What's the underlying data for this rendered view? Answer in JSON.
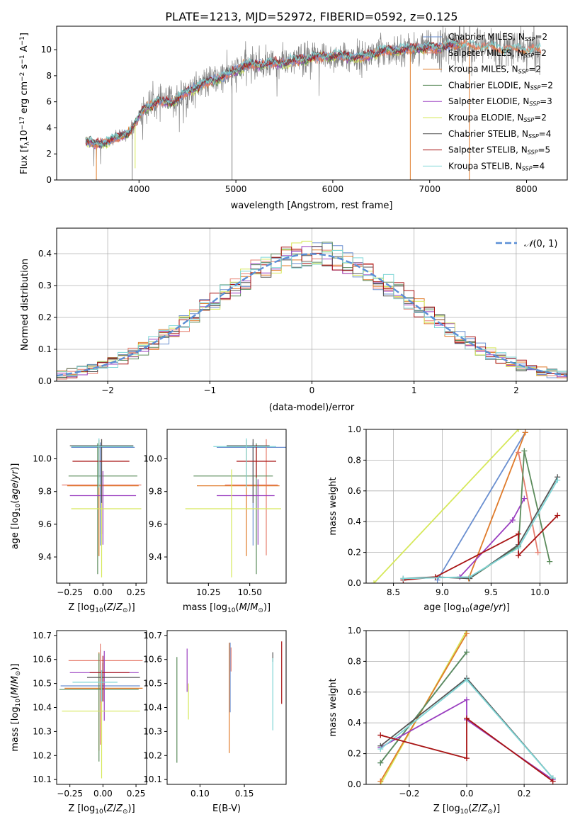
{
  "title": "PLATE=1213, MJD=52972, FIBERID=0592, z=0.125",
  "colors": {
    "Chabrier MILES": "#6a8fd0",
    "Salpeter MILES": "#e67e6f",
    "Kroupa MILES": "#e07b2a",
    "Chabrier ELODIE": "#5c8c5c",
    "Salpeter ELODIE": "#9a3fc0",
    "Kroupa ELODIE": "#d6e85a",
    "Chabrier STELIB": "#555555",
    "Salpeter STELIB": "#a81414",
    "Kroupa STELIB": "#7fd6d6"
  },
  "chart_data": [
    {
      "type": "line",
      "title": "PLATE=1213, MJD=52972, FIBERID=0592, z=0.125",
      "xlabel": "wavelength [Angstrom, rest frame]",
      "ylabel": "Flux [fλ10⁻¹⁷ erg cm⁻² s⁻¹ A⁻¹]",
      "xlim": [
        3150,
        8420
      ],
      "ylim": [
        0,
        11.8
      ],
      "xticks": [
        4000,
        5000,
        6000,
        7000,
        8000
      ],
      "yticks": [
        0,
        2,
        4,
        6,
        8,
        10
      ],
      "legend_placement": "upper-right",
      "legend": [
        {
          "label": "Chabrier MILES, N",
          "sub": "SSP",
          "suffix": "=2",
          "color": "#6a8fd0"
        },
        {
          "label": "Salpeter MILES, N",
          "sub": "SSP",
          "suffix": "=2",
          "color": "#e67e6f"
        },
        {
          "label": "Kroupa MILES, N",
          "sub": "SSP",
          "suffix": "=2",
          "color": "#e07b2a"
        },
        {
          "label": "Chabrier ELODIE, N",
          "sub": "SSP",
          "suffix": "=2",
          "color": "#5c8c5c"
        },
        {
          "label": "Salpeter ELODIE, N",
          "sub": "SSP",
          "suffix": "=3",
          "color": "#9a3fc0"
        },
        {
          "label": "Kroupa ELODIE, N",
          "sub": "SSP",
          "suffix": "=2",
          "color": "#d6e85a"
        },
        {
          "label": "Chabrier STELIB, N",
          "sub": "SSP",
          "suffix": "=4",
          "color": "#555555"
        },
        {
          "label": "Salpeter STELIB, N",
          "sub": "SSP",
          "suffix": "=5",
          "color": "#a81414"
        },
        {
          "label": "Kroupa STELIB, N",
          "sub": "SSP",
          "suffix": "=4",
          "color": "#7fd6d6"
        }
      ],
      "data_color": "#808080",
      "continuum": {
        "x": [
          3450,
          3550,
          3700,
          3800,
          3900,
          3960,
          4050,
          4200,
          4350,
          4500,
          4700,
          4900,
          5100,
          5300,
          5500,
          5700,
          5900,
          6100,
          6300,
          6500,
          6700,
          6900,
          7100,
          7300,
          7500,
          7700,
          7900,
          8100
        ],
        "y": [
          3.0,
          2.7,
          3.0,
          3.3,
          3.7,
          4.3,
          5.5,
          6.0,
          6.0,
          6.8,
          7.5,
          8.0,
          8.8,
          8.9,
          9.0,
          9.3,
          9.5,
          9.5,
          9.4,
          9.9,
          10.0,
          10.1,
          10.2,
          10.4,
          10.3,
          10.1,
          10.0,
          10.0
        ]
      },
      "data_xrange": [
        3450,
        8150
      ],
      "models_xrange": [
        3450,
        7300
      ],
      "dips": [
        {
          "x": 3560,
          "y": 0.0,
          "color": "#e07b2a"
        },
        {
          "x": 3930,
          "y": 0.0,
          "color": "#808080"
        },
        {
          "x": 3960,
          "y": 0.9,
          "color": "#d6e85a"
        },
        {
          "x": 4960,
          "y": 0.0,
          "color": "#808080"
        },
        {
          "x": 6800,
          "y": 0.0,
          "color": "#e07b2a"
        },
        {
          "x": 7410,
          "y": 0.0,
          "color": "#e07b2a"
        }
      ]
    },
    {
      "type": "step",
      "xlabel": "(data-model)/error",
      "ylabel": "Normed distribution",
      "xlim": [
        -2.5,
        2.5
      ],
      "ylim": [
        0,
        0.48
      ],
      "xticks": [
        -2,
        -1,
        0,
        1,
        2
      ],
      "xtick_labels": [
        "−2",
        "−1",
        "0",
        "1",
        "2"
      ],
      "yticks": [
        0.0,
        0.1,
        0.2,
        0.3,
        0.4
      ],
      "grid": true,
      "bin_edges_start": -2.5,
      "bin_width": 0.1,
      "n_bins": 50,
      "gaussian": {
        "name": "𝒩(0, 1)",
        "mean": 0,
        "sigma": 1,
        "color": "#5b8fd6"
      },
      "legend_placement": "upper-right"
    },
    {
      "type": "errorbar",
      "xlabel": "Z [log10(Z/Z⊙)]",
      "ylabel": "age  [log10(age/yr)]",
      "xlim": [
        -0.35,
        0.33
      ],
      "ylim": [
        9.24,
        10.18
      ],
      "xticks": [
        -0.25,
        0.0,
        0.25
      ],
      "xtick_labels": [
        "−0.25",
        "0.00",
        "0.25"
      ],
      "yticks": [
        9.4,
        9.6,
        9.8,
        10.0
      ],
      "points": [
        {
          "model": "Chabrier MILES",
          "x": -0.02,
          "xerr": [
            0.22,
            0.26
          ],
          "y": 10.07,
          "yerr": [
            0.6,
            0.03
          ]
        },
        {
          "model": "Salpeter MILES",
          "x": -0.01,
          "xerr": [
            0.3,
            0.3
          ],
          "y": 9.84,
          "yerr": [
            0.3,
            0.28
          ]
        },
        {
          "model": "Kroupa MILES",
          "x": -0.03,
          "xerr": [
            0.24,
            0.3
          ],
          "y": 9.835,
          "yerr": [
            0.43,
            0.28
          ]
        },
        {
          "model": "Chabrier ELODIE",
          "x": -0.04,
          "xerr": [
            0.22,
            0.3
          ],
          "y": 9.895,
          "yerr": [
            0.6,
            0.2
          ]
        },
        {
          "model": "Salpeter ELODIE",
          "x": 0.0,
          "xerr": [
            0.25,
            0.25
          ],
          "y": 9.775,
          "yerr": [
            0.3,
            0.15
          ]
        },
        {
          "model": "Kroupa ELODIE",
          "x": -0.01,
          "xerr": [
            0.23,
            0.3
          ],
          "y": 9.695,
          "yerr": [
            0.42,
            0.24
          ]
        },
        {
          "model": "Chabrier STELIB",
          "x": -0.01,
          "xerr": [
            0.24,
            0.24
          ],
          "y": 10.08,
          "yerr": [
            0.35,
            0.04
          ]
        },
        {
          "model": "Salpeter STELIB",
          "x": -0.03,
          "xerr": [
            0.2,
            0.23
          ],
          "y": 9.985,
          "yerr": [
            0.1,
            0.1
          ]
        },
        {
          "model": "Kroupa STELIB",
          "x": -0.03,
          "xerr": [
            0.21,
            0.26
          ],
          "y": 10.075,
          "yerr": [
            0.25,
            0.05
          ]
        }
      ]
    },
    {
      "type": "errorbar",
      "xlabel": "mass [log10(M/M⊙)]",
      "ylabel": "",
      "xlim": [
        10.0,
        10.72
      ],
      "ylim": [
        9.24,
        10.18
      ],
      "xticks": [
        10.25,
        10.5
      ],
      "xtick_labels": [
        "10.25",
        "10.50"
      ],
      "yticks": [
        9.4,
        9.6,
        9.8,
        10.0
      ],
      "points": [
        {
          "model": "Chabrier MILES",
          "x": 10.52,
          "xerr": [
            0.22,
            0.22
          ],
          "y": 10.07,
          "yerr": [
            0.6,
            0.03
          ]
        },
        {
          "model": "Salpeter MILES",
          "x": 10.6,
          "xerr": [
            0.25,
            0.07
          ],
          "y": 9.84,
          "yerr": [
            0.43,
            0.28
          ]
        },
        {
          "model": "Kroupa MILES",
          "x": 10.48,
          "xerr": [
            0.3,
            0.2
          ],
          "y": 9.835,
          "yerr": [
            0.43,
            0.28
          ]
        },
        {
          "model": "Chabrier ELODIE",
          "x": 10.54,
          "xerr": [
            0.38,
            0.1
          ],
          "y": 9.895,
          "yerr": [
            0.6,
            0.2
          ]
        },
        {
          "model": "Salpeter ELODIE",
          "x": 10.55,
          "xerr": [
            0.25,
            0.1
          ],
          "y": 9.775,
          "yerr": [
            0.3,
            0.1
          ]
        },
        {
          "model": "Kroupa ELODIE",
          "x": 10.39,
          "xerr": [
            0.28,
            0.3
          ],
          "y": 9.695,
          "yerr": [
            0.42,
            0.24
          ]
        },
        {
          "model": "Chabrier STELIB",
          "x": 10.52,
          "xerr": [
            0.16,
            0.1
          ],
          "y": 10.08,
          "yerr": [
            0.35,
            0.04
          ]
        },
        {
          "model": "Salpeter STELIB",
          "x": 10.54,
          "xerr": [
            0.12,
            0.12
          ],
          "y": 9.985,
          "yerr": [
            0.1,
            0.1
          ]
        },
        {
          "model": "Kroupa STELIB",
          "x": 10.48,
          "xerr": [
            0.2,
            0.18
          ],
          "y": 10.075,
          "yerr": [
            0.25,
            0.05
          ]
        }
      ]
    },
    {
      "type": "line",
      "xlabel": "age  [log10(age/yr)]",
      "ylabel": "mass weight",
      "xlim": [
        8.22,
        10.28
      ],
      "ylim": [
        0,
        1.0
      ],
      "xticks": [
        8.5,
        9.0,
        9.5,
        10.0
      ],
      "xtick_labels": [
        "8.5",
        "9.0",
        "9.5",
        "10.0"
      ],
      "yticks": [
        0.0,
        0.2,
        0.4,
        0.6,
        0.8,
        1.0
      ],
      "grid": true,
      "series": [
        {
          "model": "Kroupa ELODIE",
          "x": [
            8.3,
            9.78
          ],
          "y": [
            0.0,
            1.0
          ]
        },
        {
          "model": "Chabrier MILES",
          "x": [
            8.95,
            9.85
          ],
          "y": [
            0.02,
            0.98
          ]
        },
        {
          "model": "Kroupa MILES",
          "x": [
            9.27,
            9.85
          ],
          "y": [
            0.03,
            0.98
          ]
        },
        {
          "model": "Salpeter MILES",
          "x": [
            9.78,
            9.98
          ],
          "y": [
            0.85,
            0.2
          ]
        },
        {
          "model": "Salpeter ELODIE",
          "x": [
            9.18,
            9.72,
            9.84
          ],
          "y": [
            0.04,
            0.41,
            0.55
          ]
        },
        {
          "model": "Chabrier ELODIE",
          "x": [
            9.28,
            9.78,
            9.84,
            10.1
          ],
          "y": [
            0.03,
            0.24,
            0.86,
            0.14
          ]
        },
        {
          "model": "Chabrier STELIB",
          "x": [
            8.6,
            8.93,
            9.28,
            9.78,
            10.18
          ],
          "y": [
            0.03,
            0.04,
            0.03,
            0.25,
            0.69
          ]
        },
        {
          "model": "Salpeter STELIB",
          "x": [
            8.6,
            8.93,
            9.78,
            9.78,
            10.18
          ],
          "y": [
            0.02,
            0.04,
            0.32,
            0.18,
            0.44
          ]
        },
        {
          "model": "Kroupa STELIB",
          "x": [
            8.6,
            9.28,
            9.78,
            10.18
          ],
          "y": [
            0.03,
            0.04,
            0.23,
            0.67
          ]
        }
      ]
    },
    {
      "type": "errorbar",
      "xlabel": "Z [log10(Z/Z⊙)]",
      "ylabel": "mass [log10(M/M⊙)]",
      "xlim": [
        -0.35,
        0.33
      ],
      "ylim": [
        10.08,
        10.72
      ],
      "xticks": [
        -0.25,
        0.0,
        0.25
      ],
      "xtick_labels": [
        "−0.25",
        "0.00",
        "0.25"
      ],
      "yticks": [
        10.1,
        10.2,
        10.3,
        10.4,
        10.5,
        10.6,
        10.7
      ],
      "points": [
        {
          "model": "Chabrier MILES",
          "x": -0.02,
          "xerr": [
            0.3,
            0.3
          ],
          "y": 10.49,
          "yerr": [
            0.07,
            0.15
          ]
        },
        {
          "model": "Salpeter MILES",
          "x": -0.02,
          "xerr": [
            0.24,
            0.32
          ],
          "y": 10.595,
          "yerr": [
            0.35,
            0.07
          ]
        },
        {
          "model": "Kroupa MILES",
          "x": -0.03,
          "xerr": [
            0.26,
            0.33
          ],
          "y": 10.48,
          "yerr": [
            0.26,
            0.15
          ]
        },
        {
          "model": "Chabrier ELODIE",
          "x": -0.03,
          "xerr": [
            0.3,
            0.3
          ],
          "y": 10.475,
          "yerr": [
            0.3,
            0.15
          ]
        },
        {
          "model": "Salpeter ELODIE",
          "x": 0.01,
          "xerr": [
            0.26,
            0.26
          ],
          "y": 10.545,
          "yerr": [
            0.2,
            0.09
          ]
        },
        {
          "model": "Kroupa ELODIE",
          "x": -0.01,
          "xerr": [
            0.3,
            0.29
          ],
          "y": 10.385,
          "yerr": [
            0.28,
            0.15
          ]
        },
        {
          "model": "Chabrier STELIB",
          "x": 0.0,
          "xerr": [
            0.12,
            0.28
          ],
          "y": 10.525,
          "yerr": [
            0.1,
            0.06
          ]
        },
        {
          "model": "Salpeter STELIB",
          "x": 0.0,
          "xerr": [
            0.1,
            0.2
          ],
          "y": 10.545,
          "yerr": [
            0.12,
            0.07
          ]
        },
        {
          "model": "Kroupa STELIB",
          "x": -0.01,
          "xerr": [
            0.22,
            0.12
          ],
          "y": 10.505,
          "yerr": [
            0.08,
            0.05
          ]
        }
      ]
    },
    {
      "type": "errorbar",
      "xlabel": "E(B-V)",
      "ylabel": "",
      "xlim": [
        0.063,
        0.197
      ],
      "ylim": [
        10.08,
        10.72
      ],
      "xticks": [
        0.1,
        0.15
      ],
      "xtick_labels": [
        "0.10",
        "0.15"
      ],
      "yticks": [
        10.1,
        10.2,
        10.3,
        10.4,
        10.5,
        10.6,
        10.7
      ],
      "points": [
        {
          "model": "Chabrier ELODIE",
          "x": 0.074,
          "xerr": [
            0,
            0
          ],
          "y": 10.39,
          "yerr": [
            0.22,
            0.22
          ]
        },
        {
          "model": "Salpeter ELODIE",
          "x": 0.0855,
          "xerr": [
            0,
            0
          ],
          "y": 10.555,
          "yerr": [
            0.09,
            0.09
          ]
        },
        {
          "model": "Kroupa ELODIE",
          "x": 0.087,
          "xerr": [
            0,
            0
          ],
          "y": 10.425,
          "yerr": [
            0.075,
            0.075
          ]
        },
        {
          "model": "Kroupa MILES",
          "x": 0.133,
          "xerr": [
            0,
            0
          ],
          "y": 10.44,
          "yerr": [
            0.23,
            0.23
          ]
        },
        {
          "model": "Chabrier MILES",
          "x": 0.134,
          "xerr": [
            0,
            0
          ],
          "y": 10.45,
          "yerr": [
            0.07,
            0.22
          ]
        },
        {
          "model": "Salpeter MILES",
          "x": 0.135,
          "xerr": [
            0,
            0
          ],
          "y": 10.6,
          "yerr": [
            0.05,
            0.05
          ]
        },
        {
          "model": "Chabrier STELIB",
          "x": 0.182,
          "xerr": [
            0,
            0
          ],
          "y": 10.61,
          "yerr": [
            0.02,
            0.02
          ]
        },
        {
          "model": "Kroupa STELIB",
          "x": 0.182,
          "xerr": [
            0,
            0
          ],
          "y": 10.455,
          "yerr": [
            0.15,
            0.15
          ]
        },
        {
          "model": "Salpeter STELIB",
          "x": 0.192,
          "xerr": [
            0,
            0
          ],
          "y": 10.545,
          "yerr": [
            0.13,
            0.13
          ]
        }
      ]
    },
    {
      "type": "line",
      "xlabel": "Z [log10(Z/Z⊙)]",
      "ylabel": "mass weight",
      "xlim": [
        -0.35,
        0.35
      ],
      "ylim": [
        0,
        1.0
      ],
      "xticks": [
        -0.2,
        0.0,
        0.2
      ],
      "xtick_labels": [
        "−0.2",
        "0.0",
        "0.2"
      ],
      "yticks": [
        0.0,
        0.2,
        0.4,
        0.6,
        0.8,
        1.0
      ],
      "grid": true,
      "series": [
        {
          "model": "Kroupa ELODIE",
          "x": [
            -0.3,
            0.0
          ],
          "y": [
            0.0,
            1.0
          ]
        },
        {
          "model": "Kroupa MILES",
          "x": [
            -0.3,
            0.0
          ],
          "y": [
            0.02,
            0.98
          ]
        },
        {
          "model": "Chabrier MILES",
          "x": [
            -0.3,
            0.0
          ],
          "y": [
            0.14,
            0.86
          ]
        },
        {
          "model": "Chabrier ELODIE",
          "x": [
            -0.3,
            0.0
          ],
          "y": [
            0.14,
            0.86
          ]
        },
        {
          "model": "Salpeter ELODIE",
          "x": [
            -0.3,
            0.0,
            0.0,
            0.3
          ],
          "y": [
            0.24,
            0.55,
            0.42,
            0.03
          ]
        },
        {
          "model": "Chabrier STELIB",
          "x": [
            -0.3,
            0.0,
            0.3
          ],
          "y": [
            0.25,
            0.69,
            0.04
          ]
        },
        {
          "model": "Kroupa STELIB",
          "x": [
            -0.3,
            0.0,
            0.3
          ],
          "y": [
            0.23,
            0.68,
            0.04
          ]
        },
        {
          "model": "Salpeter STELIB",
          "x": [
            -0.3,
            0.0,
            0.0,
            0.3
          ],
          "y": [
            0.32,
            0.17,
            0.43,
            0.02
          ]
        }
      ]
    }
  ]
}
